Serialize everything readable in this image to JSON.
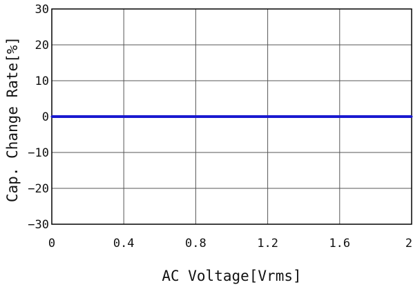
{
  "chart_data": {
    "type": "line",
    "title": "",
    "xlabel": "AC Voltage[Vrms]",
    "ylabel": "Cap. Change Rate[%]",
    "xlim": [
      0,
      2
    ],
    "ylim": [
      -30,
      30
    ],
    "x_ticks": [
      0,
      0.4,
      0.8,
      1.2,
      1.6,
      2
    ],
    "x_tick_labels": [
      "0",
      "0.4",
      "0.8",
      "1.2",
      "1.6",
      "2"
    ],
    "y_ticks": [
      30,
      20,
      10,
      0,
      -10,
      -20,
      -30
    ],
    "y_tick_labels": [
      "30",
      "20",
      "10",
      "0",
      "−10",
      "−20",
      "−30"
    ],
    "grid": true,
    "series": [
      {
        "color": "#1a1ad0",
        "x": [
          0,
          0.4,
          0.8,
          1.2,
          1.6,
          2
        ],
        "y": [
          0,
          0,
          0,
          0,
          0,
          0
        ]
      }
    ]
  }
}
